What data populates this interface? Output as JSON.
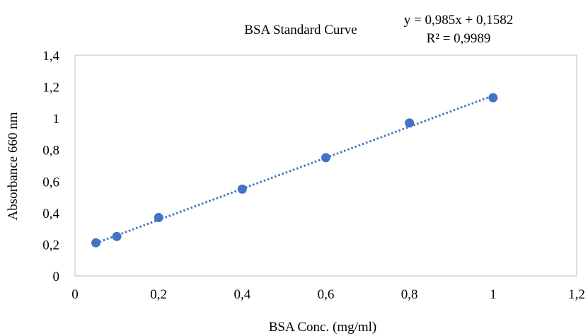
{
  "chart_data": {
    "type": "scatter",
    "title": "BSA Standard Curve",
    "xlabel": "BSA Conc. (mg/ml)",
    "ylabel": "Absorbance  660 nm",
    "xlim": [
      0,
      1.2
    ],
    "ylim": [
      0,
      1.4
    ],
    "x_ticks": [
      0,
      0.2,
      0.4,
      0.6,
      0.8,
      1,
      1.2
    ],
    "y_ticks": [
      0,
      0.2,
      0.4,
      0.6,
      0.8,
      1,
      1.2,
      1.4
    ],
    "x_tick_labels": [
      "0",
      "0,2",
      "0,4",
      "0,6",
      "0,8",
      "1",
      "1,2"
    ],
    "y_tick_labels": [
      "0",
      "0,2",
      "0,4",
      "0,6",
      "0,8",
      "1",
      "1,2",
      "1,4"
    ],
    "grid": false,
    "legend": false,
    "series": [
      {
        "x": [
          0.05,
          0.1,
          0.2,
          0.4,
          0.6,
          0.8,
          1.0
        ],
        "y": [
          0.21,
          0.25,
          0.37,
          0.55,
          0.75,
          0.97,
          1.13
        ],
        "color": "#4472C4"
      }
    ],
    "trendline": {
      "type": "linear",
      "slope": 0.985,
      "intercept": 0.1582,
      "x_range": [
        0.05,
        1.0
      ],
      "style": "dotted",
      "color": "#4472C4",
      "equation_text": "y = 0,985x + 0,1582",
      "r2_text": "R² = 0,9989"
    }
  }
}
